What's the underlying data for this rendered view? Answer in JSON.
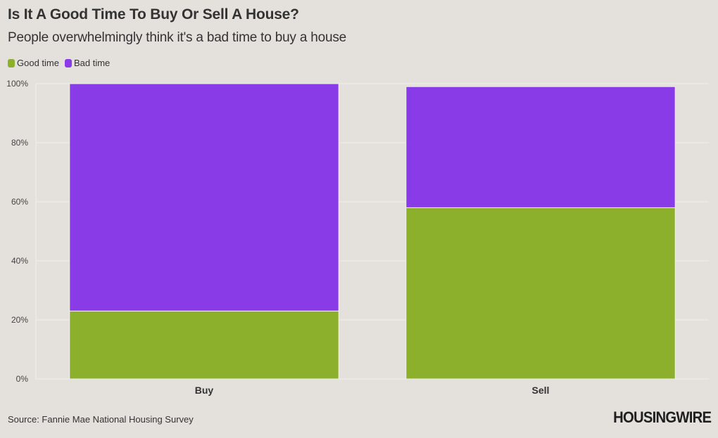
{
  "header": {
    "title": "Is It A Good Time To Buy Or Sell A House?",
    "subtitle": "People overwhelmingly think it's a bad time to buy a house"
  },
  "legend": {
    "items": [
      {
        "label": "Good time",
        "color": "#8caf2c"
      },
      {
        "label": "Bad time",
        "color": "#8a3be8"
      }
    ]
  },
  "footer": {
    "source": "Source: Fannie Mae National Housing Survey",
    "logo": "HOUSINGWIRE"
  },
  "chart_data": {
    "type": "bar",
    "stacked": true,
    "categories": [
      "Buy",
      "Sell"
    ],
    "series": [
      {
        "name": "Good time",
        "values": [
          23,
          58
        ],
        "color": "#8caf2c"
      },
      {
        "name": "Bad time",
        "values": [
          77,
          41
        ],
        "color": "#8a3be8"
      }
    ],
    "yticks": [
      "0%",
      "20%",
      "40%",
      "60%",
      "80%",
      "100%"
    ],
    "ylim": [
      0,
      100
    ],
    "grid": true,
    "legend_position": "top-left"
  }
}
